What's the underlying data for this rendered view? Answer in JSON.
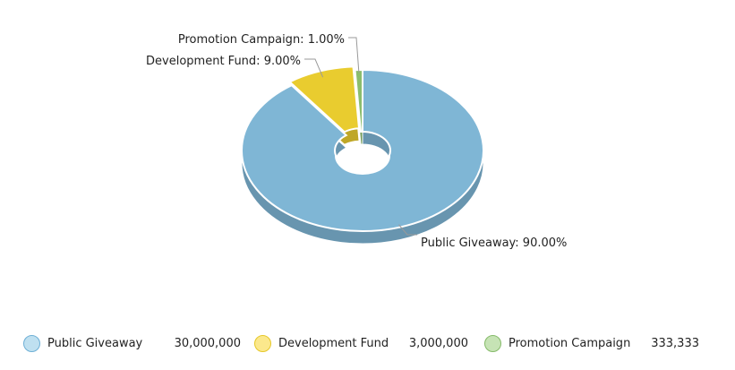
{
  "chart_data": {
    "type": "pie",
    "variant": "3d-donut",
    "categories": [
      "Public Giveaway",
      "Development Fund",
      "Promotion Campaign"
    ],
    "values": [
      30000000,
      3000000,
      333333
    ],
    "value_labels": [
      "30,000,000",
      "3,000,000",
      "333,333"
    ],
    "percent_labels": [
      "90.00%",
      "9.00%",
      "1.00%"
    ],
    "colors": [
      "#7fb6d5",
      "#e9cc2f",
      "#8bbd6d"
    ],
    "legend_colors": [
      "#bfe0f0",
      "#fbe88c",
      "#c6e3b5"
    ],
    "legend_border_colors": [
      "#6fb0d6",
      "#e6c82a",
      "#86bb6a"
    ],
    "legend_position": "bottom-left",
    "title": "",
    "start_angle_degrees": 0,
    "exploded_slices": [
      "Development Fund"
    ]
  }
}
